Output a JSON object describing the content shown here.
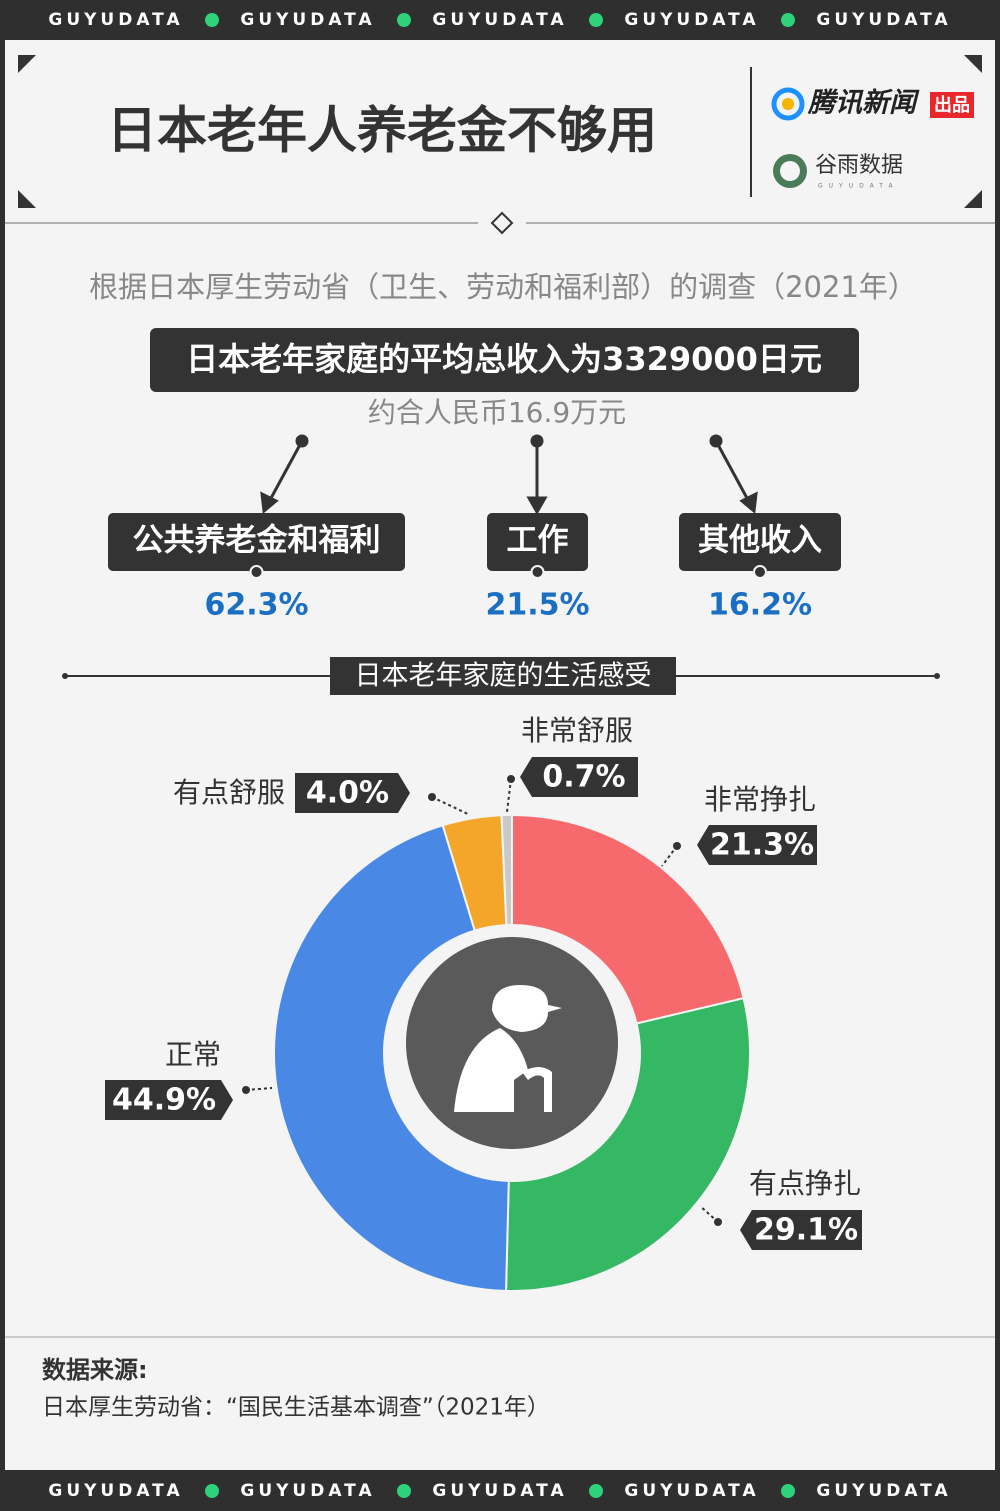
{
  "top_banner": [
    "GUYUDATA",
    "GUYUDATA",
    "GUYUDATA",
    "GUYUDATA",
    "GUYUDATA"
  ],
  "header": {
    "title": "日本老年人养老金不够用",
    "brand": "腾讯新闻",
    "brand_tag": "出品",
    "partner": "谷雨数据",
    "partner_sub": "GUYUDATA"
  },
  "income": {
    "subtitle": "根据日本厚生劳动省（卫生、劳动和福利部）的调查（2021年）",
    "headline": "日本老年家庭的平均总收入为3329000日元",
    "note": "约合人民币16.9万元",
    "items": [
      {
        "label": "公共养老金和福利",
        "share": "62.3%"
      },
      {
        "label": "工作",
        "share": "21.5%"
      },
      {
        "label": "其他收入",
        "share": "16.2%"
      }
    ]
  },
  "chart_data": {
    "type": "pie",
    "title": "日本老年家庭的生活感受",
    "categories": [
      "非常挣扎",
      "有点挣扎",
      "正常",
      "有点舒服",
      "非常舒服"
    ],
    "values": [
      21.3,
      29.1,
      44.9,
      4.0,
      0.7
    ],
    "value_labels": [
      "21.3%",
      "29.1%",
      "44.9%",
      "4.0%",
      "0.7%"
    ],
    "colors": [
      "#f66a6e",
      "#35b864",
      "#4a88e6",
      "#f3a62a",
      "#c9c9c9"
    ]
  },
  "source": {
    "label": "数据来源:",
    "text": "日本厚生劳动省：“国民生活基本调查”（2021年）"
  },
  "bottom_banner": [
    "GUYUDATA",
    "GUYUDATA",
    "GUYUDATA",
    "GUYUDATA",
    "GUYUDATA"
  ]
}
